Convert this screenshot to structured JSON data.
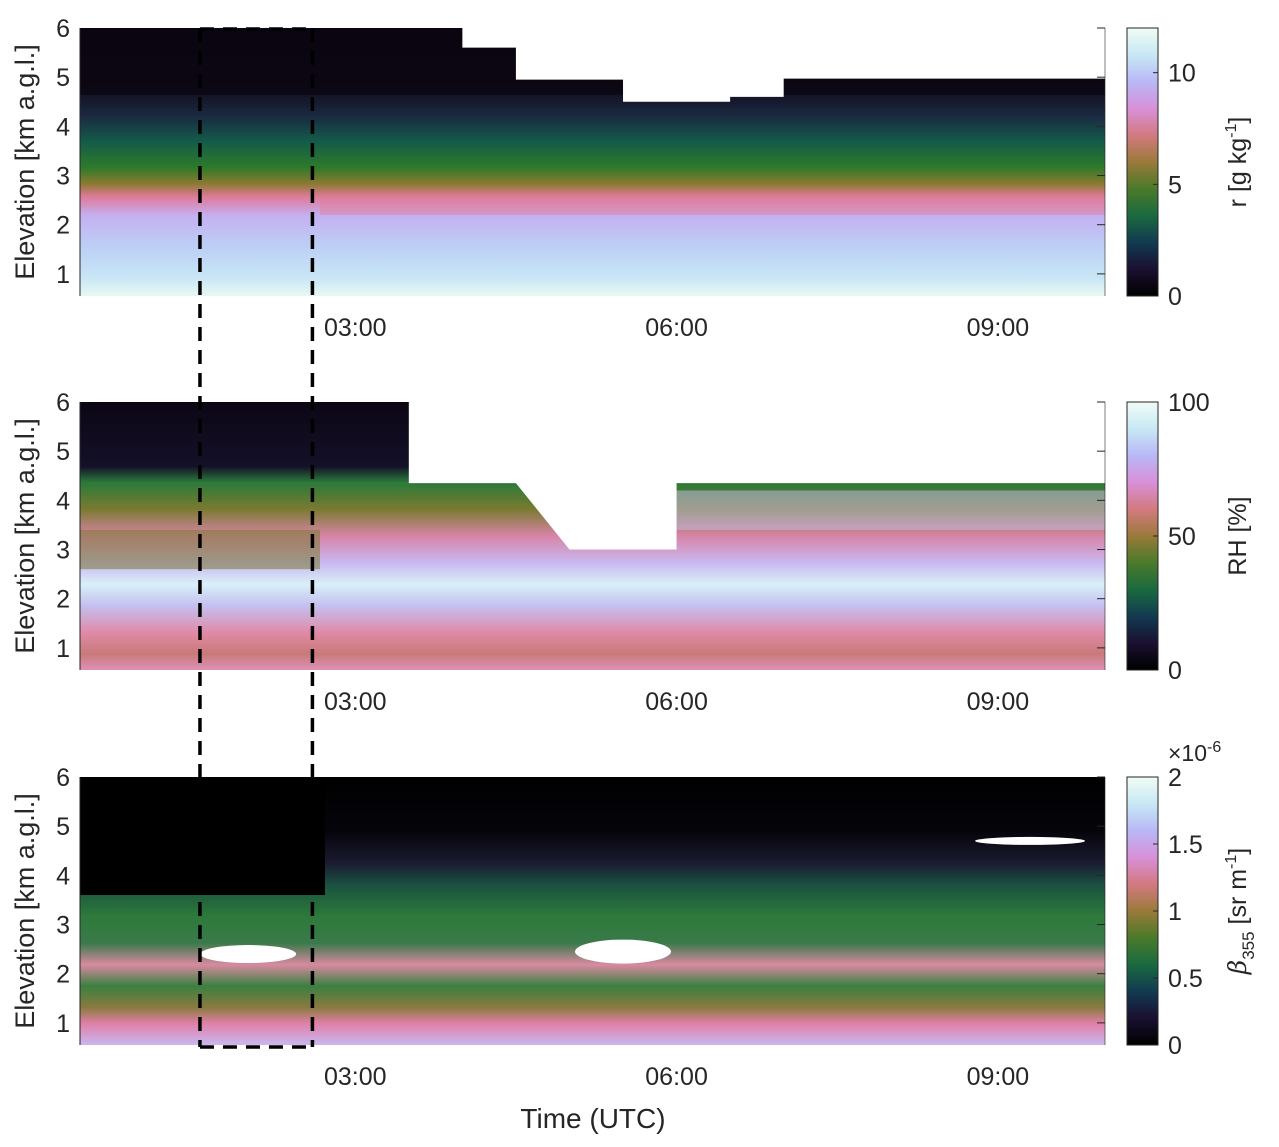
{
  "chart_data": [
    {
      "type": "heatmap",
      "title": "",
      "xlabel": "",
      "ylabel": "Elevation [km a.g.l.]",
      "xlim_hours_utc": [
        0.43,
        10.0
      ],
      "ylim": [
        0.55,
        6
      ],
      "xticks": [
        {
          "v": 3,
          "label": "03:00"
        },
        {
          "v": 6,
          "label": "06:00"
        },
        {
          "v": 9,
          "label": "09:00"
        }
      ],
      "yticks": [
        {
          "v": 1,
          "label": "1"
        },
        {
          "v": 2,
          "label": "2"
        },
        {
          "v": 3,
          "label": "3"
        },
        {
          "v": 4,
          "label": "4"
        },
        {
          "v": 5,
          "label": "5"
        },
        {
          "v": 6,
          "label": "6"
        }
      ],
      "colorbar": {
        "label": "r [g kg",
        "label_sup": "-1",
        "label_end": "]",
        "range": [
          0,
          12
        ],
        "ticks": [
          {
            "v": 0,
            "label": "0"
          },
          {
            "v": 5,
            "label": "5"
          },
          {
            "v": 10,
            "label": "10"
          }
        ]
      },
      "profile_stops": [
        [
          0,
          "#0a0510"
        ],
        [
          0.22,
          "#120a1c"
        ],
        [
          0.33,
          "#1a2a40"
        ],
        [
          0.42,
          "#135a4a"
        ],
        [
          0.52,
          "#2d7a2a"
        ],
        [
          0.58,
          "#8a7a30"
        ],
        [
          0.63,
          "#e07a9a"
        ],
        [
          0.7,
          "#c4b0f0"
        ],
        [
          0.82,
          "#bcd0f6"
        ],
        [
          0.93,
          "#c8e6f6"
        ],
        [
          1,
          "#e8f8f2"
        ]
      ],
      "missing_region_top_km": [
        {
          "from": 4.0,
          "to": 4.5,
          "km": 5.6
        },
        {
          "from": 4.5,
          "to": 5.5,
          "km": 4.95
        },
        {
          "from": 5.5,
          "to": 6.5,
          "km": 4.5
        },
        {
          "from": 6.5,
          "to": 7.0,
          "km": 4.6
        },
        {
          "from": 7.0,
          "to": 10.0,
          "km": 4.97
        }
      ]
    },
    {
      "type": "heatmap",
      "ylabel": "Elevation [km a.g.l.]",
      "xlim_hours_utc": [
        0.43,
        10.0
      ],
      "ylim": [
        0.55,
        6
      ],
      "xticks": [
        {
          "v": 3,
          "label": "03:00"
        },
        {
          "v": 6,
          "label": "06:00"
        },
        {
          "v": 9,
          "label": "09:00"
        }
      ],
      "yticks": [
        {
          "v": 1,
          "label": "1"
        },
        {
          "v": 2,
          "label": "2"
        },
        {
          "v": 3,
          "label": "3"
        },
        {
          "v": 4,
          "label": "4"
        },
        {
          "v": 5,
          "label": "5"
        },
        {
          "v": 6,
          "label": "6"
        }
      ],
      "colorbar": {
        "label": "RH [%]",
        "range": [
          0,
          100
        ],
        "ticks": [
          {
            "v": 0,
            "label": "0"
          },
          {
            "v": 50,
            "label": "50"
          },
          {
            "v": 100,
            "label": "100"
          }
        ]
      },
      "profile_stops": [
        [
          0,
          "#0c0614"
        ],
        [
          0.24,
          "#141028"
        ],
        [
          0.3,
          "#2a7a3a"
        ],
        [
          0.4,
          "#7a7a30"
        ],
        [
          0.5,
          "#d884a8"
        ],
        [
          0.6,
          "#c9b8f0"
        ],
        [
          0.68,
          "#d8f0f8"
        ],
        [
          0.76,
          "#c4c0f0"
        ],
        [
          0.86,
          "#e08aa8"
        ],
        [
          0.94,
          "#c87a78"
        ],
        [
          1,
          "#e090b8"
        ]
      ],
      "missing_region_top_km": [
        {
          "from": 3.5,
          "to": 4.5,
          "km": 4.35
        },
        {
          "from": 5.0,
          "to": 6.0,
          "km": 3.0
        },
        {
          "from": 6.0,
          "to": 10.0,
          "km": 4.35
        }
      ]
    },
    {
      "type": "heatmap",
      "xlabel": "Time (UTC)",
      "ylabel": "Elevation [km a.g.l.]",
      "xlim_hours_utc": [
        0.43,
        10.0
      ],
      "ylim": [
        0.55,
        6
      ],
      "xticks": [
        {
          "v": 3,
          "label": "03:00"
        },
        {
          "v": 6,
          "label": "06:00"
        },
        {
          "v": 9,
          "label": "09:00"
        }
      ],
      "yticks": [
        {
          "v": 1,
          "label": "1"
        },
        {
          "v": 2,
          "label": "2"
        },
        {
          "v": 3,
          "label": "3"
        },
        {
          "v": 4,
          "label": "4"
        },
        {
          "v": 5,
          "label": "5"
        },
        {
          "v": 6,
          "label": "6"
        }
      ],
      "colorbar": {
        "label_beta": "β",
        "label_sub": "355",
        "label": " [sr m",
        "label_sup": "-1",
        "label_end": "]",
        "exponent": "×10",
        "exponent_sup": "-6",
        "range": [
          0,
          2
        ],
        "ticks": [
          {
            "v": 0,
            "label": "0"
          },
          {
            "v": 0.5,
            "label": "0.5"
          },
          {
            "v": 1,
            "label": "1"
          },
          {
            "v": 1.5,
            "label": "1.5"
          },
          {
            "v": 2,
            "label": "2"
          }
        ]
      },
      "profile_stops": [
        [
          0,
          "#000000"
        ],
        [
          0.2,
          "#05040a"
        ],
        [
          0.32,
          "#1a1a30"
        ],
        [
          0.4,
          "#1a5040"
        ],
        [
          0.52,
          "#2d7a3a"
        ],
        [
          0.62,
          "#3a7a4a"
        ],
        [
          0.7,
          "#d88aa0"
        ],
        [
          0.78,
          "#3a8040"
        ],
        [
          0.86,
          "#8a7a40"
        ],
        [
          0.92,
          "#e080a8"
        ],
        [
          1,
          "#c8b8f0"
        ]
      ],
      "saturated_features": [
        {
          "t": 2.0,
          "km": 2.4
        },
        {
          "t": 5.5,
          "km": 2.45
        },
        {
          "t": 9.3,
          "km": 4.7
        }
      ]
    }
  ],
  "colormap": [
    "#000000",
    "#1a1030",
    "#123a50",
    "#1a6a40",
    "#4a7a2a",
    "#9a7a3a",
    "#d27a80",
    "#d890d8",
    "#b8b8f6",
    "#c8e8f4",
    "#f0fcf4"
  ],
  "annotation": {
    "type": "dashed box",
    "t_start": 1.55,
    "t_end": 2.6
  }
}
